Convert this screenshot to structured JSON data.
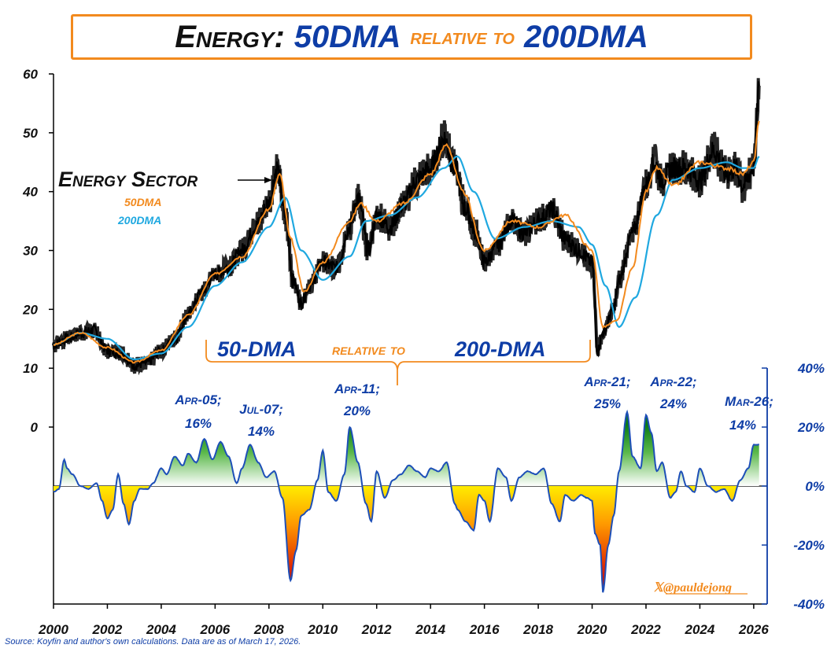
{
  "title": {
    "part1": "Energy:",
    "part2": "50DMA",
    "part3": "relative to",
    "part4": "200DMA"
  },
  "source": "Source: Koyfin and author's own calculations. Data are as of March 17, 2026.",
  "handle": "𝕏@pauldejong",
  "colors": {
    "price": "#000000",
    "dma50": "#f28a1e",
    "dma200": "#1fa8e0",
    "accent_blue": "#0e3da6",
    "title_border": "#f28a1e"
  },
  "chart_data": [
    {
      "type": "line",
      "title": "Energy Sector",
      "legend": [
        "50DMA",
        "200DMA"
      ],
      "ylim": [
        0,
        60
      ],
      "yticks": [
        "60",
        "50",
        "40",
        "30",
        "20",
        "10",
        "0"
      ],
      "xticks": [
        "2000",
        "2002",
        "2004",
        "2006",
        "2008",
        "2010",
        "2012",
        "2014",
        "2016",
        "2018",
        "2020",
        "2022",
        "2024",
        "2026"
      ],
      "xlim": [
        2000,
        2026.5
      ],
      "series": [
        {
          "name": "Energy Sector",
          "x": [
            2000,
            2000.5,
            2001,
            2001.5,
            2002,
            2002.5,
            2003,
            2003.5,
            2004,
            2004.5,
            2005,
            2005.5,
            2006,
            2006.5,
            2007,
            2007.5,
            2008,
            2008.3,
            2008.6,
            2008.9,
            2009.2,
            2009.5,
            2010,
            2010.5,
            2011,
            2011.3,
            2011.7,
            2012,
            2012.5,
            2013,
            2013.5,
            2014,
            2014.5,
            2014.9,
            2015.3,
            2015.7,
            2016,
            2016.5,
            2017,
            2017.5,
            2018,
            2018.5,
            2019,
            2019.5,
            2020,
            2020.2,
            2020.4,
            2020.8,
            2021,
            2021.5,
            2022,
            2022.3,
            2022.6,
            2023,
            2023.5,
            2024,
            2024.5,
            2025,
            2025.3,
            2025.6,
            2026,
            2026.2
          ],
          "y": [
            14,
            15,
            16,
            16.5,
            13,
            12.5,
            10.5,
            11,
            13,
            15,
            19,
            23,
            26,
            27,
            30,
            34,
            38,
            44,
            36,
            25,
            21,
            24,
            28,
            27,
            34,
            39,
            30,
            36,
            34,
            38,
            42,
            44,
            49,
            44,
            37,
            33,
            28,
            31,
            35,
            33,
            35,
            37,
            32,
            30,
            28,
            13,
            16,
            20,
            25,
            33,
            41,
            45,
            42,
            44,
            44,
            42,
            47,
            43,
            44,
            41,
            44,
            58
          ]
        },
        {
          "name": "50DMA",
          "x": [
            2000,
            2001,
            2002,
            2003,
            2004,
            2005,
            2006,
            2007,
            2008,
            2008.4,
            2008.8,
            2009.3,
            2010,
            2011,
            2011.4,
            2012,
            2013,
            2014,
            2014.6,
            2015.2,
            2016,
            2017,
            2018,
            2019,
            2020,
            2020.4,
            2020.9,
            2021.5,
            2022,
            2022.4,
            2023,
            2024,
            2025,
            2025.6,
            2026,
            2026.2
          ],
          "y": [
            14,
            16,
            13.5,
            11,
            13,
            19,
            26,
            29,
            37,
            43,
            32,
            23,
            28,
            35,
            38,
            35,
            38,
            43,
            48,
            40,
            30,
            35,
            34,
            36,
            30,
            17,
            18,
            27,
            40,
            44,
            41,
            45,
            44,
            43,
            45,
            52
          ]
        },
        {
          "name": "200DMA",
          "x": [
            2000,
            2001,
            2002,
            2003,
            2004,
            2005,
            2006,
            2007,
            2008,
            2008.6,
            2009.2,
            2010,
            2011,
            2011.6,
            2012.5,
            2013.5,
            2014.5,
            2015,
            2015.6,
            2016.4,
            2017.5,
            2018.5,
            2019.5,
            2020,
            2020.5,
            2021,
            2021.6,
            2022.4,
            2023,
            2024,
            2025,
            2025.6,
            2026,
            2026.2
          ],
          "y": [
            14,
            16,
            15,
            11.5,
            12.5,
            17,
            24,
            28,
            34,
            39,
            30,
            25,
            29,
            35,
            36,
            39,
            44,
            46,
            40,
            32,
            34,
            35,
            34,
            31,
            24,
            17,
            22,
            36,
            42,
            44,
            45,
            44,
            44,
            46
          ]
        }
      ]
    },
    {
      "type": "area",
      "title": "50-DMA relative to 200-DMA",
      "ylim": [
        -40,
        40
      ],
      "yticks": [
        "40%",
        "20%",
        "0%",
        "-20%",
        "-40%"
      ],
      "x": [
        2000,
        2000.2,
        2000.4,
        2000.5,
        2000.7,
        2001,
        2001.3,
        2001.6,
        2001.8,
        2002,
        2002.2,
        2002.4,
        2002.6,
        2002.8,
        2003,
        2003.2,
        2003.5,
        2003.7,
        2004,
        2004.2,
        2004.5,
        2004.8,
        2005,
        2005.3,
        2005.6,
        2005.9,
        2006.2,
        2006.5,
        2006.8,
        2007,
        2007.3,
        2007.6,
        2007.9,
        2008.2,
        2008.5,
        2008.8,
        2009,
        2009.2,
        2009.5,
        2009.8,
        2010,
        2010.2,
        2010.5,
        2010.8,
        2011,
        2011.3,
        2011.6,
        2011.8,
        2012,
        2012.3,
        2012.6,
        2012.9,
        2013.2,
        2013.5,
        2013.8,
        2014,
        2014.3,
        2014.6,
        2014.9,
        2015,
        2015.3,
        2015.6,
        2015.8,
        2016,
        2016.2,
        2016.5,
        2016.8,
        2017,
        2017.3,
        2017.6,
        2017.9,
        2018.2,
        2018.5,
        2018.8,
        2019,
        2019.3,
        2019.6,
        2019.8,
        2020,
        2020.1,
        2020.3,
        2020.4,
        2020.6,
        2020.8,
        2021,
        2021.3,
        2021.5,
        2021.8,
        2022,
        2022.2,
        2022.4,
        2022.6,
        2022.9,
        2023.1,
        2023.3,
        2023.5,
        2023.8,
        2024,
        2024.3,
        2024.6,
        2024.9,
        2025.2,
        2025.5,
        2025.8,
        2026,
        2026.2
      ],
      "values": [
        -2,
        -1,
        9,
        6,
        4,
        0,
        -1,
        1,
        -5,
        -11,
        -8,
        4,
        -6,
        -13,
        -5,
        -1,
        -1,
        1,
        6,
        4,
        10,
        7,
        11,
        8,
        16,
        9,
        15,
        10,
        1,
        6,
        14,
        8,
        3,
        5,
        -4,
        -32,
        -22,
        -10,
        -8,
        2,
        12,
        -2,
        -5,
        4,
        20,
        8,
        -6,
        -12,
        5,
        -4,
        2,
        4,
        7,
        5,
        3,
        6,
        5,
        8,
        -6,
        -8,
        -12,
        -15,
        -3,
        -5,
        -12,
        6,
        3,
        -5,
        3,
        5,
        4,
        6,
        -6,
        -12,
        -3,
        -5,
        -3,
        -4,
        -5,
        -16,
        -20,
        -36,
        -20,
        -10,
        5,
        25,
        10,
        6,
        24,
        18,
        5,
        8,
        -4,
        -2,
        5,
        0,
        -2,
        6,
        0,
        -2,
        -1,
        -5,
        2,
        6,
        14,
        14
      ]
    }
  ],
  "annotations": [
    {
      "date": "Apr-05;",
      "value": "16%"
    },
    {
      "date": "Jul-07;",
      "value": "14%"
    },
    {
      "date": "Apr-11;",
      "value": "20%"
    },
    {
      "date": "Apr-21;",
      "value": "25%"
    },
    {
      "date": "Apr-22;",
      "value": "24%"
    },
    {
      "date": "Mar-26;",
      "value": "14%"
    }
  ],
  "labels": {
    "energy_sector": "Energy Sector",
    "legend_50": "50DMA",
    "legend_200": "200DMA",
    "subtitle_a": "50-DMA",
    "subtitle_b": "relative to",
    "subtitle_c": "200-DMA"
  }
}
